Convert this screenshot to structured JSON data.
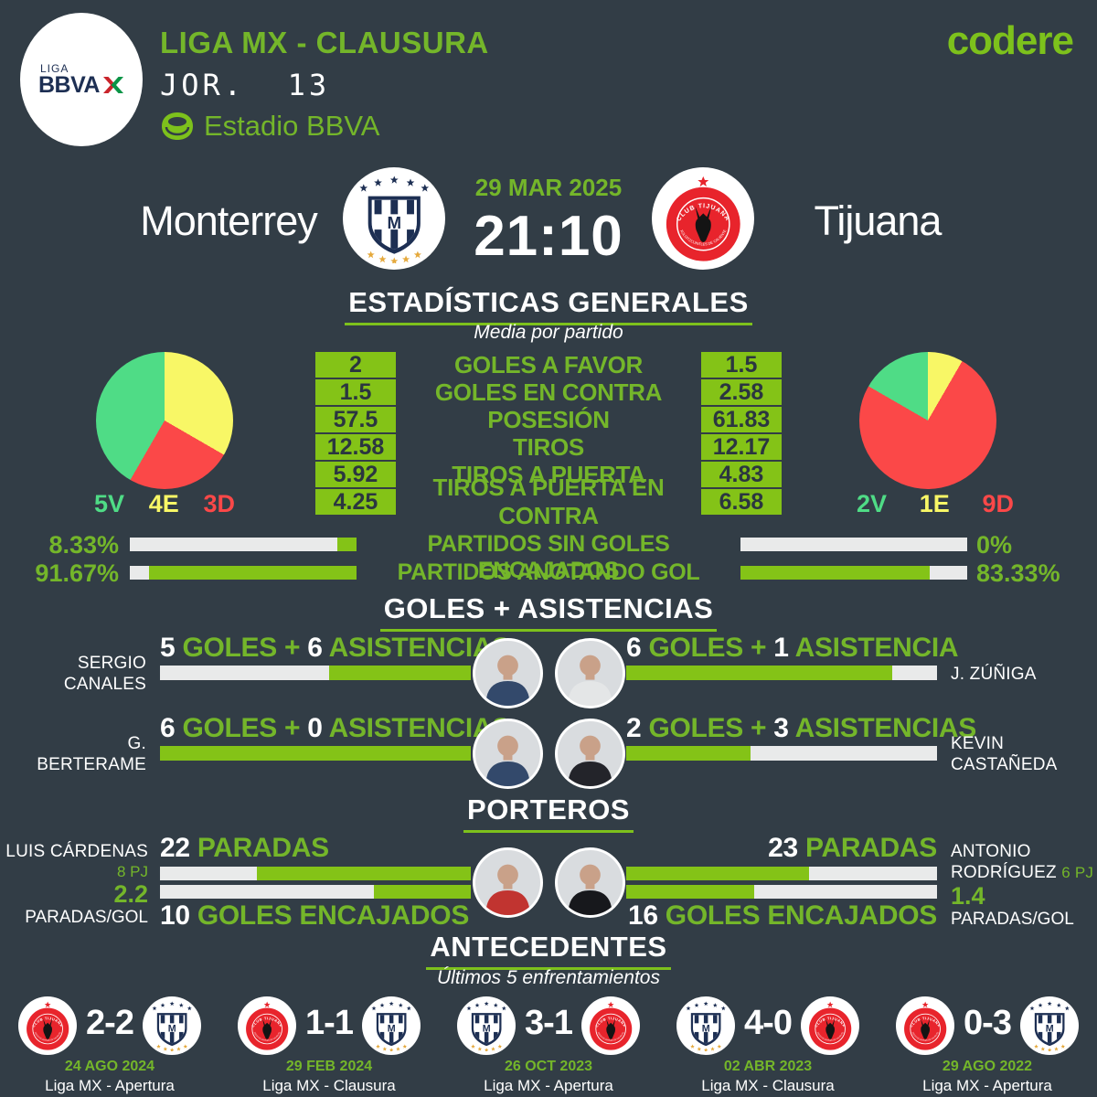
{
  "header": {
    "league_logo_top": "LIGA",
    "league_logo_bottom": "BBVA",
    "league": "LIGA MX - CLAUSURA",
    "round": "JOR.  13",
    "stadium": "Estadio BBVA",
    "brand": "codere"
  },
  "match": {
    "home_team": "Monterrey",
    "away_team": "Tijuana",
    "home_logo": "monterrey",
    "away_logo": "tijuana",
    "date": "29 MAR 2025",
    "time": "21:10"
  },
  "colors": {
    "background": "#323d46",
    "accent_green": "#7dc11c",
    "bar_green": "#84c317",
    "win_green": "#4fdc86",
    "draw_yellow": "#f8f766",
    "loss_red": "#fb4848"
  },
  "general_stats": {
    "title": "ESTADÍSTICAS GENERALES",
    "subtitle": "Media por partido",
    "home_record": {
      "wins": "5V",
      "draws": "4E",
      "losses": "3D"
    },
    "away_record": {
      "wins": "2V",
      "draws": "1E",
      "losses": "9D"
    },
    "home_pie": [
      {
        "color": "#f8f766",
        "value": 4
      },
      {
        "color": "#fb4848",
        "value": 3
      },
      {
        "color": "#4fdc86",
        "value": 5
      }
    ],
    "away_pie": [
      {
        "color": "#f8f766",
        "value": 1
      },
      {
        "color": "#fb4848",
        "value": 9
      },
      {
        "color": "#4fdc86",
        "value": 2
      }
    ],
    "rows": [
      {
        "home": "2",
        "label": "GOLES A FAVOR",
        "away": "1.5"
      },
      {
        "home": "1.5",
        "label": "GOLES EN CONTRA",
        "away": "2.58"
      },
      {
        "home": "57.5",
        "label": "POSESIÓN",
        "away": "61.83"
      },
      {
        "home": "12.58",
        "label": "TIROS",
        "away": "12.17"
      },
      {
        "home": "5.92",
        "label": "TIROS A PUERTA",
        "away": "4.83"
      },
      {
        "home": "4.25",
        "label": "TIROS A PUERTA EN CONTRA",
        "away": "6.58"
      }
    ],
    "percent_rows": [
      {
        "home": "8.33%",
        "home_pct": 8.33,
        "label": "PARTIDOS SIN GOLES ENCAJADOS",
        "away": "0%",
        "away_pct": 0
      },
      {
        "home": "91.67%",
        "home_pct": 91.67,
        "label": "PARTIDOS ANOTANDO GOL",
        "away": "83.33%",
        "away_pct": 83.33
      }
    ]
  },
  "scorers": {
    "title": "GOLES + ASISTENCIAS",
    "rows": [
      {
        "home": {
          "name_line1": "SERGIO",
          "name_line2": "CANALES",
          "goals": "5",
          "goals_label": "GOLES +",
          "assists": "6",
          "assists_label": "ASISTENCIAS",
          "goals_pct": 45.45,
          "jersey": "#33496b"
        },
        "away": {
          "name_line1": "J. ZÚÑIGA",
          "name_line2": "",
          "goals": "6",
          "goals_label": "GOLES +",
          "assists": "1",
          "assists_label": "ASISTENCIA",
          "goals_pct": 85.71,
          "jersey": "#e4e6e7"
        }
      },
      {
        "home": {
          "name_line1": "G. BERTERAME",
          "name_line2": "",
          "goals": "6",
          "goals_label": "GOLES +",
          "assists": "0",
          "assists_label": "ASISTENCIAS",
          "goals_pct": 100,
          "jersey": "#33496b"
        },
        "away": {
          "name_line1": "KEVIN",
          "name_line2": "CASTAÑEDA",
          "goals": "2",
          "goals_label": "GOLES +",
          "assists": "3",
          "assists_label": "ASISTENCIAS",
          "goals_pct": 40,
          "jersey": "#23242a"
        }
      }
    ]
  },
  "goalkeepers": {
    "title": "PORTEROS",
    "home": {
      "name": "LUIS CÁRDENAS",
      "games": "8 PJ",
      "ratio": "2.2",
      "ratio_label": "PARADAS/GOL",
      "saves": "22",
      "saves_label": "PARADAS",
      "saves_pct": 68.75,
      "conceded": "10",
      "conceded_label": "GOLES ENCAJADOS",
      "conceded_pct": 31.25,
      "jersey": "#c13430"
    },
    "away": {
      "name_line1": "ANTONIO",
      "name_line2": "RODRÍGUEZ",
      "games": "6 PJ",
      "ratio": "1.4",
      "ratio_label": "PARADAS/GOL",
      "saves": "23",
      "saves_label": "PARADAS",
      "saves_pct": 58.97,
      "conceded": "16",
      "conceded_label": "GOLES ENCAJADOS",
      "conceded_pct": 41.03,
      "jersey": "#17181c"
    }
  },
  "head_to_head": {
    "title": "ANTECEDENTES",
    "subtitle": "Últimos 5 enfrentamientos",
    "matches": [
      {
        "left_team": "tijuana",
        "score": "2-2",
        "right_team": "monterrey",
        "date": "24 AGO 2024",
        "competition": "Liga MX - Apertura"
      },
      {
        "left_team": "tijuana",
        "score": "1-1",
        "right_team": "monterrey",
        "date": "29 FEB 2024",
        "competition": "Liga MX - Clausura"
      },
      {
        "left_team": "monterrey",
        "score": "3-1",
        "right_team": "tijuana",
        "date": "26 OCT 2023",
        "competition": "Liga MX - Apertura"
      },
      {
        "left_team": "monterrey",
        "score": "4-0",
        "right_team": "tijuana",
        "date": "02 ABR 2023",
        "competition": "Liga MX - Clausura"
      },
      {
        "left_team": "tijuana",
        "score": "0-3",
        "right_team": "monterrey",
        "date": "29 AGO 2022",
        "competition": "Liga MX - Apertura"
      }
    ]
  }
}
